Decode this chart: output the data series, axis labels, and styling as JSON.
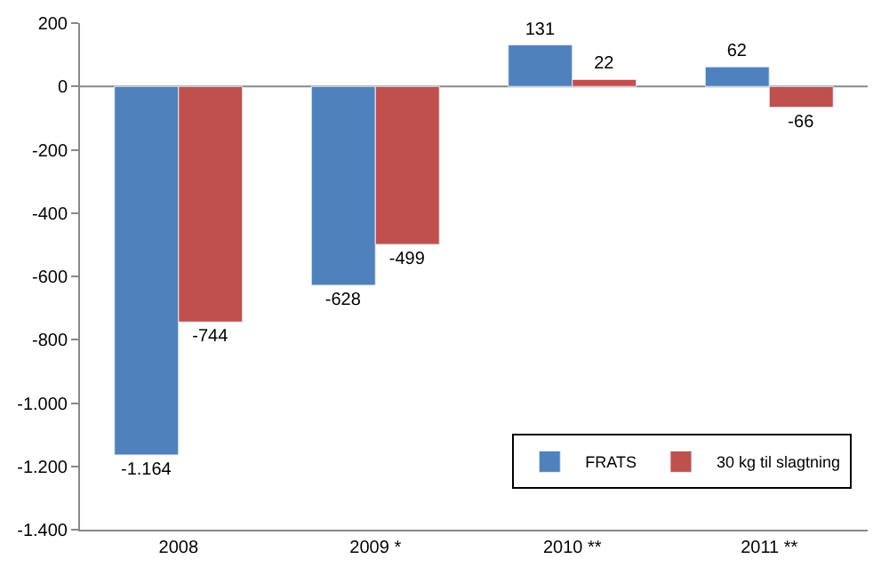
{
  "chart_data": {
    "type": "bar",
    "categories": [
      "2008",
      "2009 *",
      "2010 **",
      "2011 **"
    ],
    "series": [
      {
        "name": "FRATS",
        "color": "#4f81bd",
        "values": [
          -1164,
          -628,
          131,
          62
        ],
        "value_labels": [
          "-1.164",
          "-628",
          "131",
          "62"
        ]
      },
      {
        "name": "30 kg til slagtning",
        "color": "#c0504d",
        "values": [
          -744,
          -499,
          22,
          -66
        ],
        "value_labels": [
          "-744",
          "-499",
          "22",
          "-66"
        ]
      }
    ],
    "ylim": [
      -1400,
      200
    ],
    "yticks": [
      200,
      0,
      -200,
      -400,
      -600,
      -800,
      {
        "value": -1000,
        "label": "-1.000"
      },
      {
        "value": -1200,
        "label": "-1.200"
      },
      {
        "value": -1400,
        "label": "-1.400"
      }
    ],
    "ref_lines": [
      {
        "axis": "y",
        "value": 0,
        "color": "#888888"
      }
    ],
    "grid": false,
    "legend": "bottom right"
  }
}
